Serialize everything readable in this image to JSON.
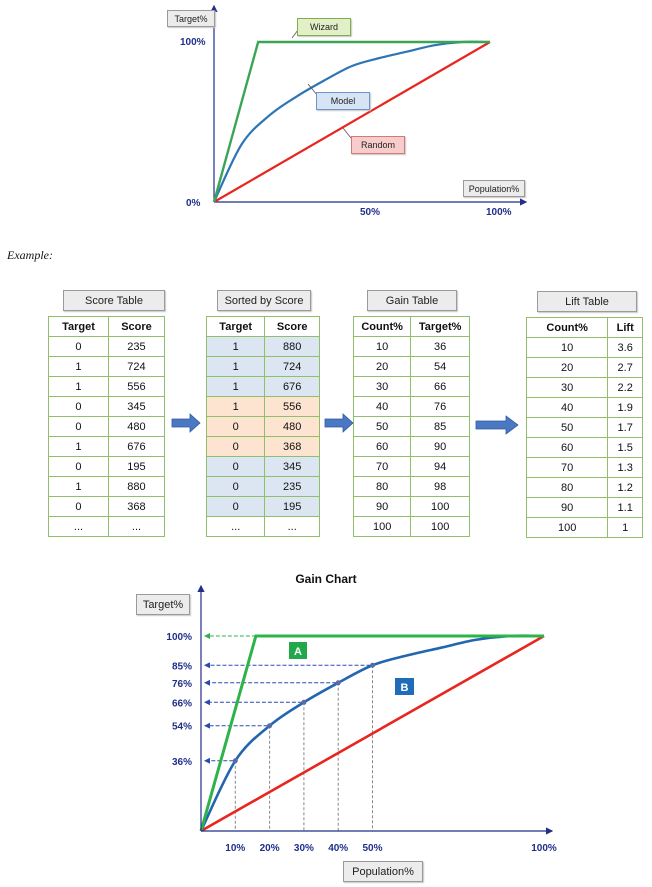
{
  "top_chart": {
    "y_axis_box": "Target%",
    "x_axis_box": "Population%",
    "y_tick_100": "100%",
    "y_tick_0": "0%",
    "x_tick_50": "50%",
    "x_tick_100": "100%",
    "labels": {
      "wizard": "Wizard",
      "model": "Model",
      "random": "Random"
    },
    "colors": {
      "wizard": "#3aa655",
      "model": "#2e75b6",
      "random": "#e8251f"
    }
  },
  "example_label": "Example:",
  "tables": {
    "score": {
      "title": "Score Table",
      "headers": [
        "Target",
        "Score"
      ],
      "rows": [
        [
          "0",
          "235"
        ],
        [
          "1",
          "724"
        ],
        [
          "1",
          "556"
        ],
        [
          "0",
          "345"
        ],
        [
          "0",
          "480"
        ],
        [
          "1",
          "676"
        ],
        [
          "0",
          "195"
        ],
        [
          "1",
          "880"
        ],
        [
          "0",
          "368"
        ],
        [
          "...",
          "..."
        ]
      ]
    },
    "sorted": {
      "title": "Sorted by Score",
      "headers": [
        "Target",
        "Score"
      ],
      "rows": [
        [
          "1",
          "880"
        ],
        [
          "1",
          "724"
        ],
        [
          "1",
          "676"
        ],
        [
          "1",
          "556"
        ],
        [
          "0",
          "480"
        ],
        [
          "0",
          "368"
        ],
        [
          "0",
          "345"
        ],
        [
          "0",
          "235"
        ],
        [
          "0",
          "195"
        ],
        [
          "...",
          "..."
        ]
      ]
    },
    "gain": {
      "title": "Gain Table",
      "headers": [
        "Count%",
        "Target%"
      ],
      "rows": [
        [
          "10",
          "36"
        ],
        [
          "20",
          "54"
        ],
        [
          "30",
          "66"
        ],
        [
          "40",
          "76"
        ],
        [
          "50",
          "85"
        ],
        [
          "60",
          "90"
        ],
        [
          "70",
          "94"
        ],
        [
          "80",
          "98"
        ],
        [
          "90",
          "100"
        ],
        [
          "100",
          "100"
        ]
      ]
    },
    "lift": {
      "title": "Lift Table",
      "headers": [
        "Count%",
        "Lift"
      ],
      "rows": [
        [
          "10",
          "3.6"
        ],
        [
          "20",
          "2.7"
        ],
        [
          "30",
          "2.2"
        ],
        [
          "40",
          "1.9"
        ],
        [
          "50",
          "1.7"
        ],
        [
          "60",
          "1.5"
        ],
        [
          "70",
          "1.3"
        ],
        [
          "80",
          "1.2"
        ],
        [
          "90",
          "1.1"
        ],
        [
          "100",
          "1"
        ]
      ]
    }
  },
  "chart_data": {
    "type": "line",
    "title": "Gain Chart",
    "ylabel": "Target%",
    "xlabel": "Population%",
    "x": [
      0,
      10,
      20,
      30,
      40,
      50,
      60,
      70,
      80,
      90,
      100
    ],
    "series": [
      {
        "key": "model",
        "values": [
          0,
          36,
          54,
          66,
          76,
          85,
          90,
          94,
          98,
          100,
          100
        ]
      },
      {
        "key": "random",
        "values": [
          0,
          10,
          20,
          30,
          40,
          50,
          60,
          70,
          80,
          90,
          100
        ]
      },
      {
        "key": "wizard",
        "points": [
          [
            0,
            0
          ],
          [
            16,
            100
          ],
          [
            100,
            100
          ]
        ]
      }
    ],
    "y_tick_labels": [
      {
        "v": 100,
        "t": "100%"
      },
      {
        "v": 85,
        "t": "85%"
      },
      {
        "v": 76,
        "t": "76%"
      },
      {
        "v": 66,
        "t": "66%"
      },
      {
        "v": 54,
        "t": "54%"
      },
      {
        "v": 36,
        "t": "36%"
      }
    ],
    "x_tick_labels": [
      {
        "v": 10,
        "t": "10%"
      },
      {
        "v": 20,
        "t": "20%"
      },
      {
        "v": 30,
        "t": "30%"
      },
      {
        "v": 40,
        "t": "40%"
      },
      {
        "v": 50,
        "t": "50%"
      },
      {
        "v": 100,
        "t": "100%"
      }
    ],
    "highlighted_points": [
      [
        10,
        36
      ],
      [
        20,
        54
      ],
      [
        30,
        66
      ],
      [
        40,
        76
      ],
      [
        50,
        85
      ]
    ],
    "region_labels": {
      "a": "A",
      "b": "B"
    },
    "colors": {
      "wizard": "#2db34a",
      "model": "#2266b0",
      "random": "#e8251f",
      "region_a": "#22a84a",
      "region_b": "#1f6db8"
    },
    "xlim": [
      0,
      100
    ],
    "ylim": [
      0,
      100
    ]
  }
}
